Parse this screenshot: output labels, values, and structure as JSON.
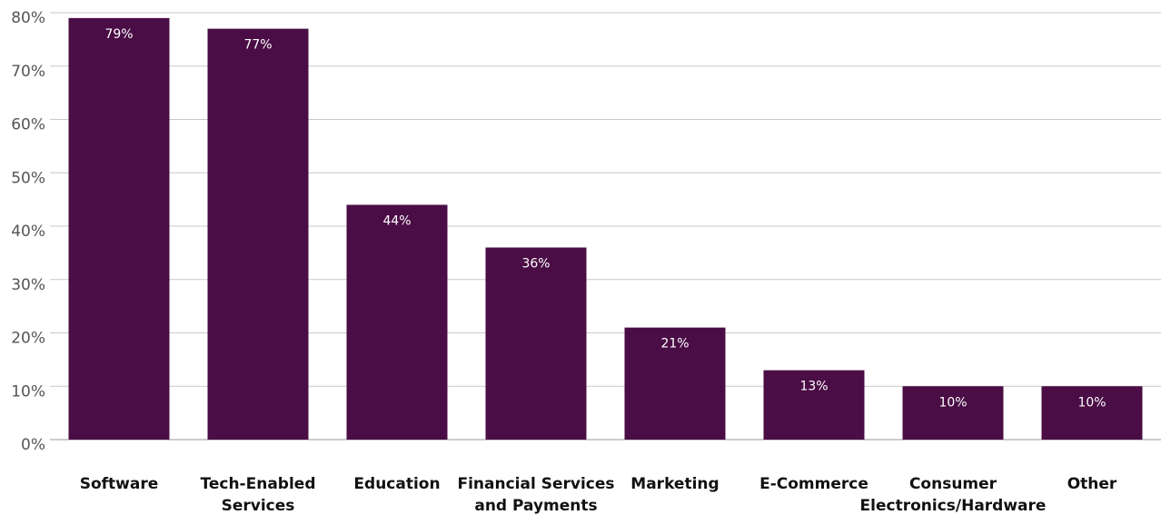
{
  "chart_data": {
    "type": "bar",
    "title": "",
    "xlabel": "",
    "ylabel": "",
    "categories": [
      [
        "Software"
      ],
      [
        "Tech-Enabled",
        "Services"
      ],
      [
        "Education"
      ],
      [
        "Financial Services",
        "and Payments"
      ],
      [
        "Marketing"
      ],
      [
        "E-Commerce"
      ],
      [
        "Consumer",
        "Electronics/Hardware"
      ],
      [
        "Other"
      ]
    ],
    "values": [
      79,
      77,
      44,
      36,
      21,
      13,
      10,
      10
    ],
    "data_labels": [
      "79%",
      "77%",
      "44%",
      "36%",
      "21%",
      "13%",
      "10%",
      "10%"
    ],
    "ylim": [
      0,
      80
    ],
    "yticks": [
      0,
      10,
      20,
      30,
      40,
      50,
      60,
      70,
      80
    ],
    "ytick_labels": [
      "0%",
      "10%",
      "20%",
      "30%",
      "40%",
      "50%",
      "60%",
      "70%",
      "80%"
    ],
    "grid": true,
    "legend": "none",
    "bar_color": "#4a0d45"
  }
}
